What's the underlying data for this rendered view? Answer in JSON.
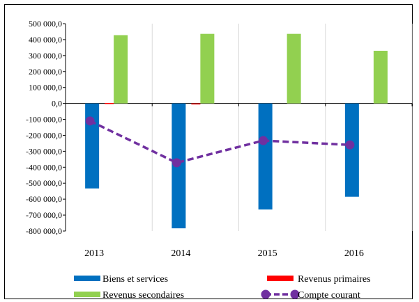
{
  "chart_data": {
    "type": "bar",
    "categories": [
      "2013",
      "2014",
      "2015",
      "2016"
    ],
    "ylim": [
      -800000,
      500000
    ],
    "yticks": [
      500000,
      400000,
      300000,
      200000,
      100000,
      0,
      -100000,
      -200000,
      -300000,
      -400000,
      -500000,
      -600000,
      -700000,
      -800000
    ],
    "ytick_labels": [
      "500 000,0",
      "400 000,0",
      "300 000,0",
      "200 000,0",
      "100 000,0",
      "0,0",
      "-100 000,0",
      "-200 000,0",
      "-300 000,0",
      "-400 000,0",
      "-500 000,0",
      "-600 000,0",
      "-700 000,0",
      "-800 000,0"
    ],
    "grid": "vertical lines between categories",
    "legend_position": "bottom",
    "series": [
      {
        "name": "Biens et services",
        "kind": "bar",
        "color": "#0070C0",
        "values": [
          -533000,
          -783000,
          -665000,
          -585000
        ]
      },
      {
        "name": "Revenus primaires",
        "kind": "bar",
        "color": "#FF0000",
        "values": [
          3000,
          -5000,
          0,
          0
        ]
      },
      {
        "name": "Revenus secondaires",
        "kind": "bar",
        "color": "#92D050",
        "values": [
          428000,
          436000,
          436000,
          330000
        ]
      },
      {
        "name": "Compte courant",
        "kind": "line",
        "style": "dashed",
        "marker": "circle",
        "color": "#7030A0",
        "values": [
          -110000,
          -372000,
          -233000,
          -260000
        ]
      }
    ]
  }
}
